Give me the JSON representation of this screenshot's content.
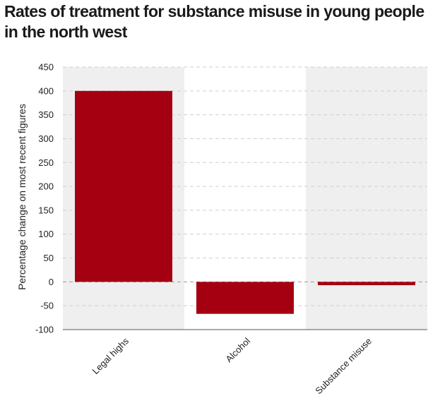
{
  "chart_data": {
    "type": "bar",
    "title": "Rates of treatment for substance misuse in young people in the north west",
    "xlabel": "",
    "ylabel": "Percentage change on most recent figures",
    "categories": [
      "Legal highs",
      "Alcohol",
      "Substance misuse"
    ],
    "values": [
      400,
      -67,
      -7
    ],
    "ylim": [
      -100,
      450
    ],
    "yticks": [
      450,
      400,
      350,
      300,
      250,
      200,
      150,
      100,
      50,
      0,
      -50,
      -100
    ],
    "grid": true,
    "colors": {
      "bar": "#a50011",
      "band": "#efefef",
      "grid": "#cfcfcf",
      "zero_line": "#9a9a9a"
    }
  }
}
